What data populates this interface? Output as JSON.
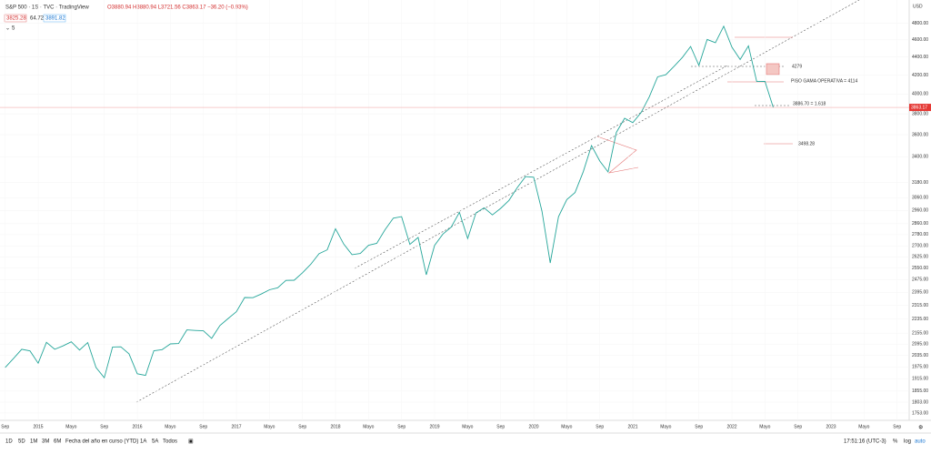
{
  "header": {
    "symbol": "S&P 500 · 1S · TVC · TradingView",
    "ohlc": "O3880.94 H3880.94 L3721.56 C3863.17 −36.20 (−0.93%)",
    "indicators": [
      "3825.28",
      "64.72",
      "3891.82"
    ],
    "collapse": "5"
  },
  "chart": {
    "currency": "USD",
    "price_label": 3863.17,
    "log": true,
    "ylim": [
      1720,
      5100
    ],
    "yticks": [
      {
        "value": 4800,
        "label": "4800.00"
      },
      {
        "value": 4600,
        "label": "4600.00"
      },
      {
        "value": 4400,
        "label": "4400.00"
      },
      {
        "value": 4200,
        "label": "4200.00"
      },
      {
        "value": 4000,
        "label": "4000.00"
      },
      {
        "value": 3800,
        "label": "3800.00"
      },
      {
        "value": 3600,
        "label": "3600.00"
      },
      {
        "value": 3400,
        "label": "3400.00"
      },
      {
        "value": 3180,
        "label": "3180.00"
      },
      {
        "value": 3060,
        "label": "3060.00"
      },
      {
        "value": 2960,
        "label": "2960.00"
      },
      {
        "value": 2860,
        "label": "2860.00"
      },
      {
        "value": 2780,
        "label": "2780.00"
      },
      {
        "value": 2700,
        "label": "2700.00"
      },
      {
        "value": 2625,
        "label": "2625.00"
      },
      {
        "value": 2550,
        "label": "2550.00"
      },
      {
        "value": 2475,
        "label": "2475.00"
      },
      {
        "value": 2395,
        "label": "2395.00"
      },
      {
        "value": 2315,
        "label": "2315.00"
      },
      {
        "value": 2235,
        "label": "2235.00"
      },
      {
        "value": 2155,
        "label": "2155.00"
      },
      {
        "value": 2095,
        "label": "2095.00"
      },
      {
        "value": 2035,
        "label": "2035.00"
      },
      {
        "value": 1975,
        "label": "1975.00"
      },
      {
        "value": 1915,
        "label": "1915.00"
      },
      {
        "value": 1855,
        "label": "1855.00"
      },
      {
        "value": 1803,
        "label": "1803.00"
      },
      {
        "value": 1753,
        "label": "1753.00"
      }
    ],
    "xlabels": [
      "Sep",
      "2015",
      "Mayo",
      "Sep",
      "2016",
      "Mayo",
      "Sep",
      "2017",
      "Mayo",
      "Sep",
      "2018",
      "Mayo",
      "Sep",
      "2019",
      "Mayo",
      "Sep",
      "2020",
      "Mayo",
      "Sep",
      "2021",
      "Mayo",
      "Sep",
      "2022",
      "Mayo",
      "Sep",
      "2023",
      "Mayo",
      "Sep"
    ],
    "closes": [
      1972,
      2018,
      2067,
      2058,
      1994,
      2104,
      2067,
      2085,
      2107,
      2063,
      2103,
      1972,
      1920,
      2079,
      2080,
      2043,
      1940,
      1932,
      2059,
      2065,
      2096,
      2098,
      2173,
      2170,
      2168,
      2126,
      2198,
      2238,
      2278,
      2363,
      2362,
      2384,
      2411,
      2423,
      2470,
      2471,
      2519,
      2575,
      2647,
      2673,
      2823,
      2713,
      2640,
      2648,
      2705,
      2718,
      2816,
      2901,
      2913,
      2711,
      2760,
      2506,
      2704,
      2784,
      2834,
      2945,
      2752,
      2941,
      2980,
      2926,
      2976,
      3037,
      3140,
      3230,
      3225,
      2954,
      2584,
      2912,
      3044,
      3100,
      3271,
      3500,
      3363,
      3269,
      3621,
      3756,
      3714,
      3811,
      3972,
      4181,
      4204,
      4297,
      4395,
      4522,
      4307,
      4605,
      4567,
      4766,
      4515,
      4373,
      4530,
      4131,
      4132,
      3863
    ],
    "annotations": [
      "4279",
      "PISO GAMA OPERATIVA = 4114",
      "3886.70 = 1.618",
      "3498.28"
    ]
  },
  "toolbar": {
    "ranges": [
      "1D",
      "5D",
      "1M",
      "3M",
      "6M",
      "Fecha del año en curso (YTD)",
      "1A",
      "5A",
      "Todos"
    ],
    "clock": "17:51:16 (UTC-3)",
    "options": [
      "%",
      "log",
      "auto"
    ]
  }
}
